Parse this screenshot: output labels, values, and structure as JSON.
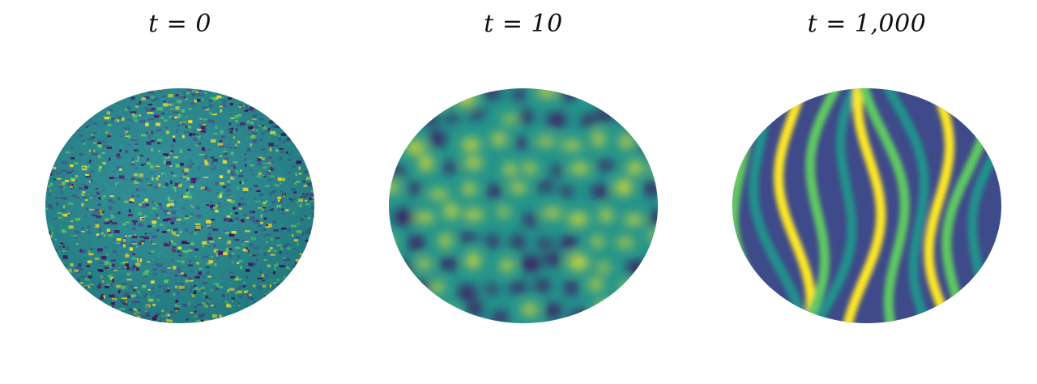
{
  "panels": [
    {
      "title": "t = 0",
      "pattern": "random noise"
    },
    {
      "title": "t = 10",
      "pattern": "spots"
    },
    {
      "title": "t = 1,000",
      "pattern": "stripes"
    }
  ],
  "colors": {
    "dark": "#440154",
    "mid_dark": "#3b528b",
    "mid": "#21918c",
    "mid_light": "#5ec962",
    "light": "#fde725"
  }
}
